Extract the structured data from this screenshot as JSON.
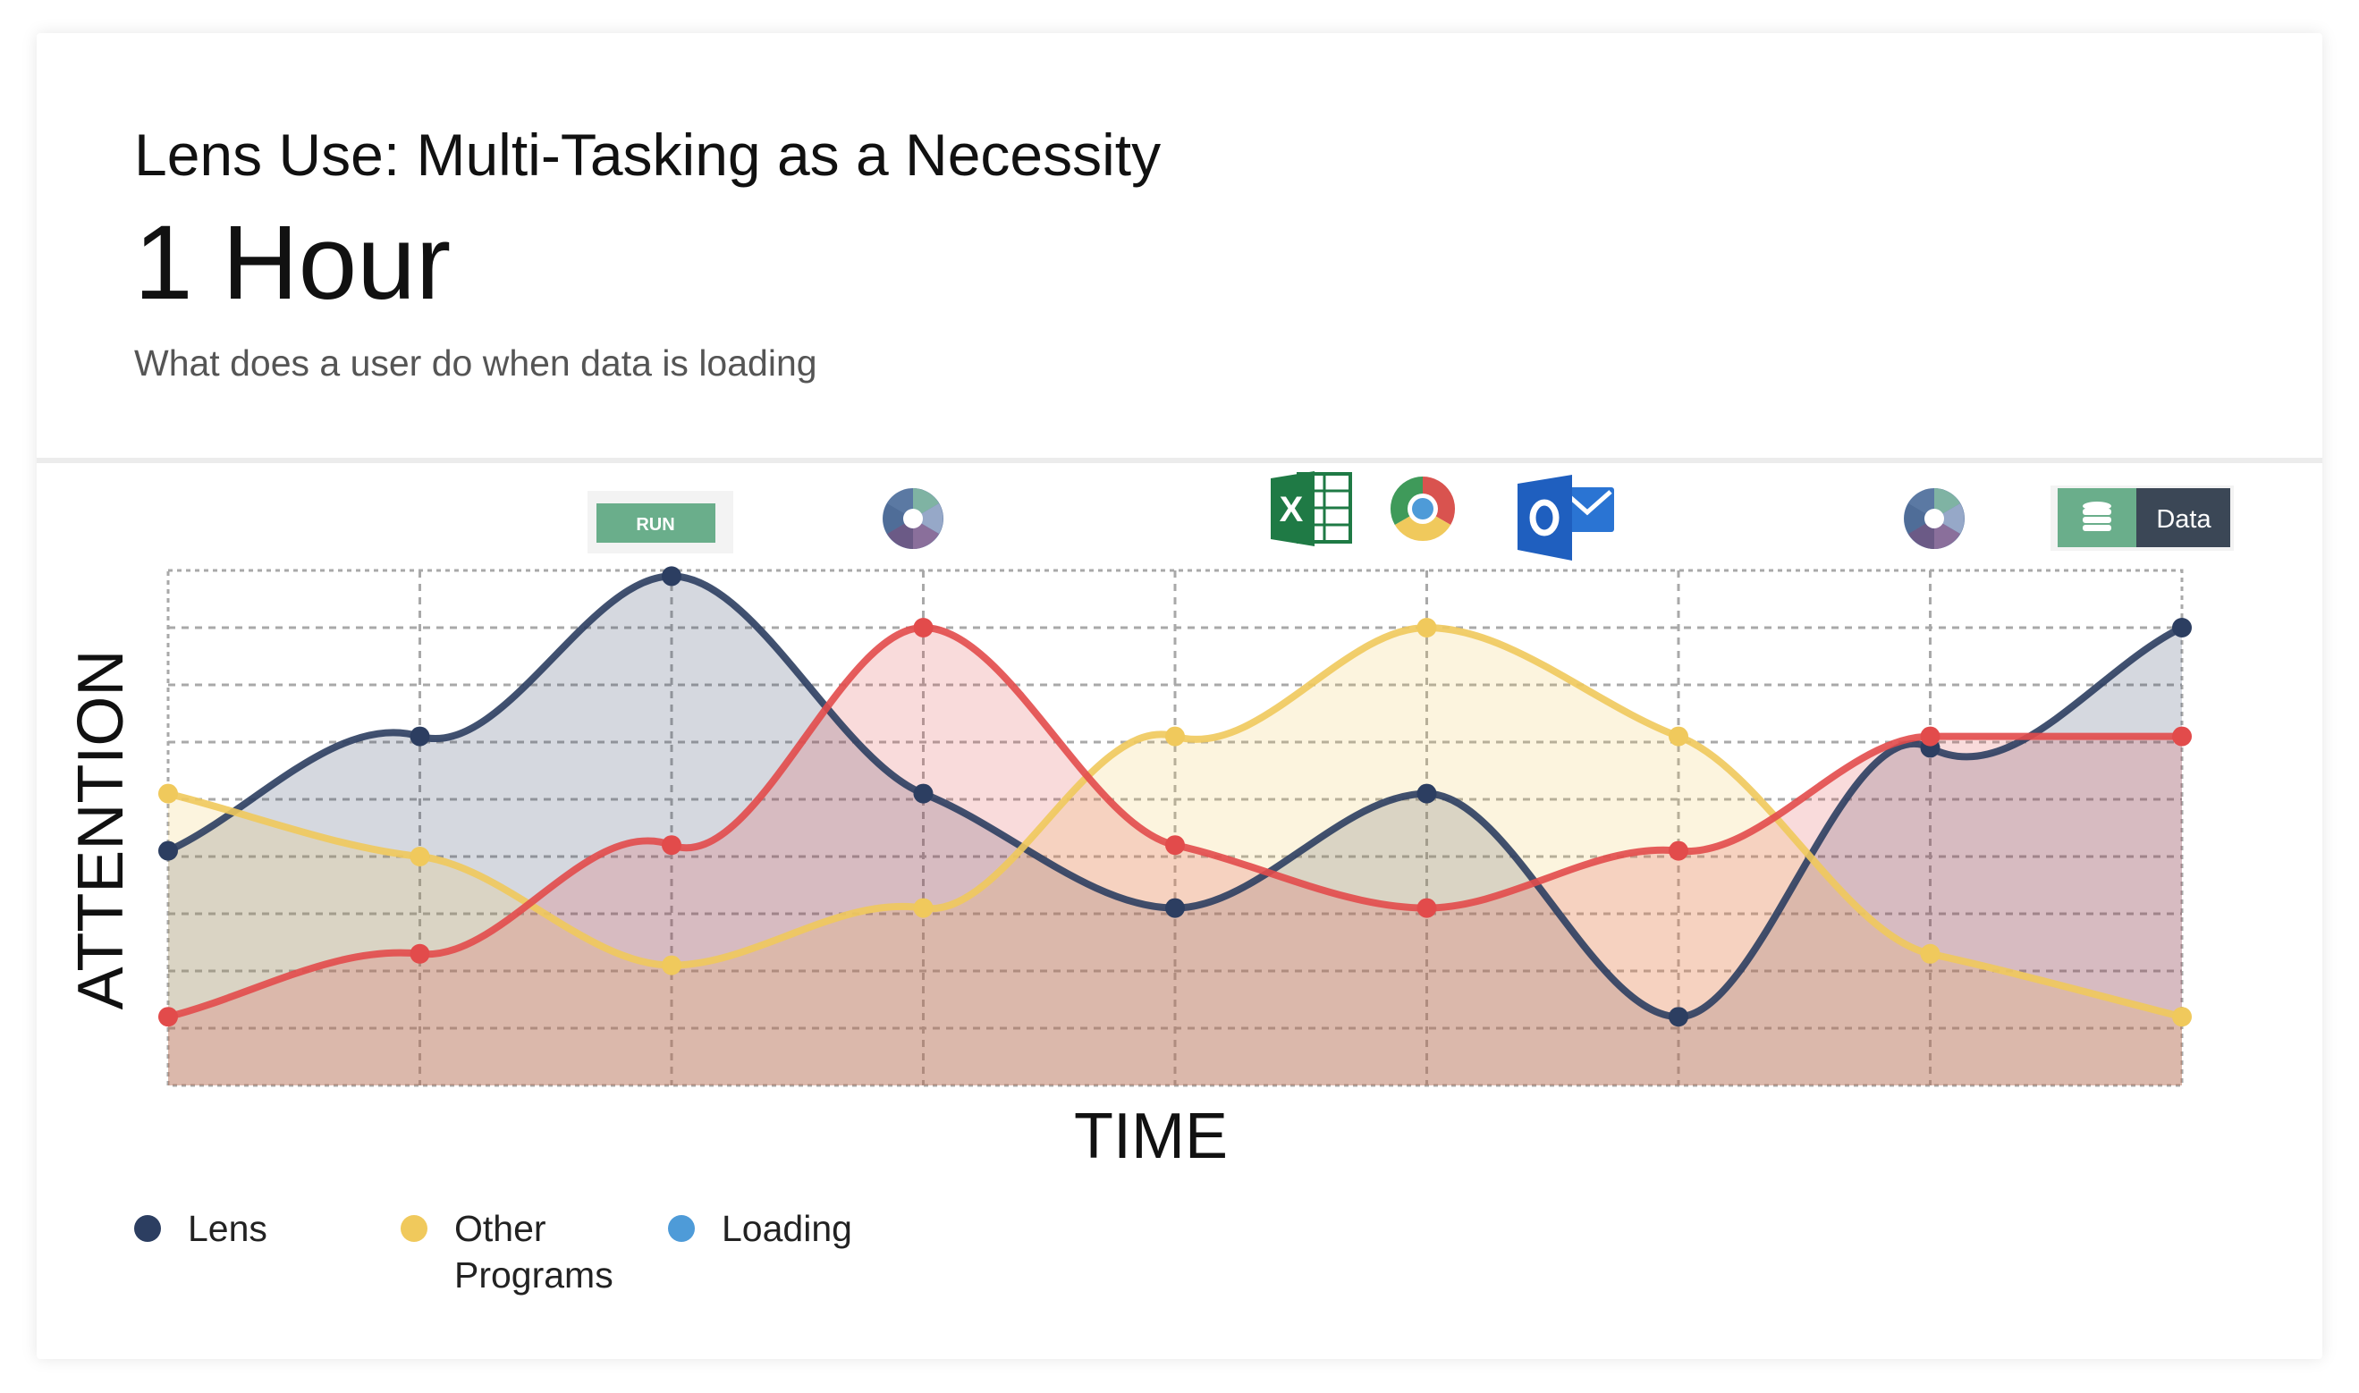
{
  "header": {
    "title": "Lens Use: Multi-Tasking as a Necessity",
    "headline": "1 Hour",
    "subtitle": "What does a user do when data is loading"
  },
  "colors": {
    "lens": "#2c3e61",
    "other": "#f0c95c",
    "loading_line": "#e24b4b",
    "loading_legend": "#4e9bd8",
    "grid": "#a9a9a9"
  },
  "annotations": {
    "run_button": "RUN",
    "data_button": "Data",
    "icons": [
      "run-button-icon",
      "aperture-icon",
      "excel-icon",
      "chrome-icon",
      "outlook-icon",
      "aperture-icon",
      "data-button-icon"
    ]
  },
  "chart_data": {
    "type": "area",
    "xlabel": "TIME",
    "ylabel": "ATTENTION",
    "x": [
      0,
      1,
      2,
      3,
      4,
      5,
      6,
      7,
      8
    ],
    "xlim": [
      0,
      8
    ],
    "ylim": [
      0,
      9
    ],
    "grid": true,
    "legend_position": "bottom-left",
    "series": [
      {
        "name": "Lens",
        "key": "lens",
        "values": [
          4.1,
          6.1,
          8.9,
          5.1,
          3.1,
          5.1,
          1.2,
          5.9,
          8.0
        ]
      },
      {
        "name": "Other Programs",
        "key": "other",
        "values": [
          5.1,
          4.0,
          2.1,
          3.1,
          6.1,
          8.0,
          6.1,
          2.3,
          1.2
        ]
      },
      {
        "name": "Loading",
        "key": "loading",
        "values": [
          1.2,
          2.3,
          4.2,
          8.0,
          4.2,
          3.1,
          4.1,
          6.1,
          6.1
        ]
      }
    ]
  },
  "legend": [
    {
      "label": "Lens",
      "label2": "",
      "color_key": "lens"
    },
    {
      "label": "Other",
      "label2": "Programs",
      "color_key": "other"
    },
    {
      "label": "Loading",
      "label2": "",
      "color_key": "loading_legend"
    }
  ]
}
